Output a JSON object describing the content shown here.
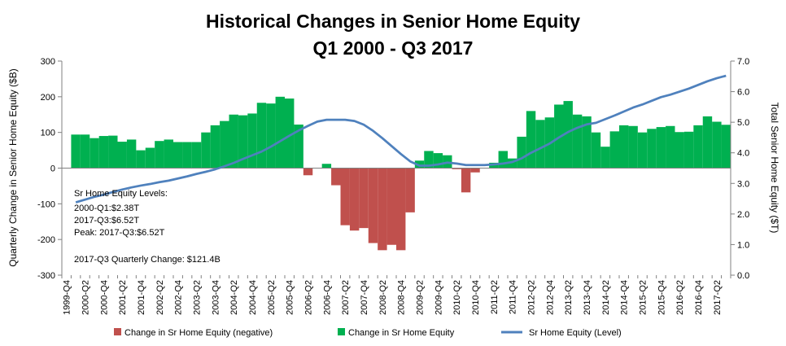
{
  "chart_data": {
    "type": "bar",
    "title": "Historical Changes in Senior Home Equity",
    "subtitle": "Q1 2000 - Q3 2017",
    "ylabel_left": "Quarterly Change in Senior Home Equity ($B)",
    "ylabel_right": "Total Senior Home Equity ($T)",
    "ylim_left": [
      -300,
      300
    ],
    "ylim_right": [
      0,
      7
    ],
    "left_ticks": [
      "300",
      "200",
      "100",
      "0",
      "-100",
      "-200",
      "-300"
    ],
    "right_ticks": [
      "7.0",
      "6.0",
      "5.0",
      "4.0",
      "3.0",
      "2.0",
      "1.0",
      "0.0"
    ],
    "x_tick_labels": [
      "1999-Q4",
      "2000-Q2",
      "2000-Q4",
      "2001-Q2",
      "2001-Q4",
      "2002-Q2",
      "2002-Q4",
      "2003-Q2",
      "2003-Q4",
      "2004-Q2",
      "2004-Q4",
      "2005-Q2",
      "2005-Q4",
      "2006-Q2",
      "2006-Q4",
      "2007-Q2",
      "2007-Q4",
      "2008-Q2",
      "2008-Q4",
      "2009-Q2",
      "2009-Q4",
      "2010-Q2",
      "2010-Q4",
      "2011-Q2",
      "2011-Q4",
      "2012-Q2",
      "2012-Q4",
      "2013-Q2",
      "2013-Q4",
      "2014-Q2",
      "2014-Q4",
      "2015-Q2",
      "2015-Q4",
      "2016-Q2",
      "2016-Q4",
      "2017-Q2"
    ],
    "categories": [
      "2000-Q1",
      "2000-Q2",
      "2000-Q3",
      "2000-Q4",
      "2001-Q1",
      "2001-Q2",
      "2001-Q3",
      "2001-Q4",
      "2002-Q1",
      "2002-Q2",
      "2002-Q3",
      "2002-Q4",
      "2003-Q1",
      "2003-Q2",
      "2003-Q3",
      "2003-Q4",
      "2004-Q1",
      "2004-Q2",
      "2004-Q3",
      "2004-Q4",
      "2005-Q1",
      "2005-Q2",
      "2005-Q3",
      "2005-Q4",
      "2006-Q1",
      "2006-Q2",
      "2006-Q3",
      "2006-Q4",
      "2007-Q1",
      "2007-Q2",
      "2007-Q3",
      "2007-Q4",
      "2008-Q1",
      "2008-Q2",
      "2008-Q3",
      "2008-Q4",
      "2009-Q1",
      "2009-Q2",
      "2009-Q3",
      "2009-Q4",
      "2010-Q1",
      "2010-Q2",
      "2010-Q3",
      "2010-Q4",
      "2011-Q1",
      "2011-Q2",
      "2011-Q3",
      "2011-Q4",
      "2012-Q1",
      "2012-Q2",
      "2012-Q3",
      "2012-Q4",
      "2013-Q1",
      "2013-Q2",
      "2013-Q3",
      "2013-Q4",
      "2014-Q1",
      "2014-Q2",
      "2014-Q3",
      "2014-Q4",
      "2015-Q1",
      "2015-Q2",
      "2015-Q3",
      "2015-Q4",
      "2016-Q1",
      "2016-Q2",
      "2016-Q3",
      "2016-Q4",
      "2017-Q1",
      "2017-Q2",
      "2017-Q3"
    ],
    "series": [
      {
        "name": "Change in Sr Home Equity",
        "axis": "left",
        "color": "#00b050",
        "values": [
          94,
          94,
          84,
          90,
          91,
          74,
          80,
          50,
          57,
          76,
          80,
          73,
          73,
          73,
          100,
          120,
          132,
          150,
          148,
          153,
          183,
          181,
          200,
          195,
          122,
          0,
          0,
          12,
          0,
          0,
          0,
          0,
          0,
          0,
          0,
          0,
          0,
          21,
          48,
          42,
          36,
          0,
          0,
          0,
          0,
          15,
          48,
          27,
          88,
          160,
          135,
          142,
          178,
          188,
          150,
          145,
          100,
          60,
          103,
          120,
          118,
          100,
          110,
          115,
          118,
          101,
          102,
          120,
          145,
          130,
          121.4
        ]
      },
      {
        "name": "Change in Sr Home Equity (negative)",
        "axis": "left",
        "color": "#c0504d",
        "values": [
          0,
          0,
          0,
          0,
          0,
          0,
          0,
          0,
          0,
          0,
          0,
          0,
          0,
          0,
          0,
          0,
          0,
          0,
          0,
          0,
          0,
          0,
          0,
          0,
          0,
          -20,
          0,
          0,
          -48,
          -160,
          -175,
          -168,
          -210,
          -230,
          -215,
          -230,
          -124,
          0,
          0,
          0,
          0,
          -3,
          -68,
          -12,
          0,
          0,
          0,
          0,
          0,
          0,
          0,
          0,
          0,
          0,
          0,
          0,
          0,
          0,
          0,
          0,
          0,
          0,
          0,
          0,
          0,
          0,
          0,
          0,
          0,
          0,
          0
        ]
      },
      {
        "name": "Sr Home Equity (Level)",
        "axis": "right",
        "type": "line",
        "color": "#4f81bd",
        "values": [
          2.38,
          2.47,
          2.56,
          2.63,
          2.72,
          2.8,
          2.87,
          2.93,
          2.98,
          3.04,
          3.09,
          3.16,
          3.23,
          3.31,
          3.38,
          3.46,
          3.56,
          3.67,
          3.8,
          3.92,
          4.04,
          4.2,
          4.38,
          4.56,
          4.73,
          4.88,
          5.02,
          5.08,
          5.08,
          5.08,
          5.04,
          4.92,
          4.72,
          4.48,
          4.22,
          3.96,
          3.72,
          3.58,
          3.58,
          3.62,
          3.68,
          3.65,
          3.6,
          3.6,
          3.6,
          3.62,
          3.65,
          3.7,
          3.82,
          4.0,
          4.15,
          4.3,
          4.5,
          4.68,
          4.82,
          4.93,
          4.98,
          5.1,
          5.22,
          5.35,
          5.48,
          5.58,
          5.7,
          5.82,
          5.9,
          6.0,
          6.1,
          6.22,
          6.34,
          6.44,
          6.52
        ]
      }
    ],
    "annotations": [
      "Sr Home Equity Levels:",
      "2000-Q1:$2.38T",
      "2017-Q3:$6.52T",
      "Peak: 2017-Q3:$6.52T",
      "2017-Q3 Quarterly Change: $121.4B"
    ],
    "legend": {
      "position": "bottom",
      "items": [
        {
          "label": "Change in Sr Home Equity (negative)",
          "color": "#c0504d",
          "kind": "box"
        },
        {
          "label": "Change in Sr Home Equity",
          "color": "#00b050",
          "kind": "box"
        },
        {
          "label": "Sr Home Equity (Level)",
          "color": "#4f81bd",
          "kind": "line"
        }
      ]
    },
    "grid": false
  }
}
